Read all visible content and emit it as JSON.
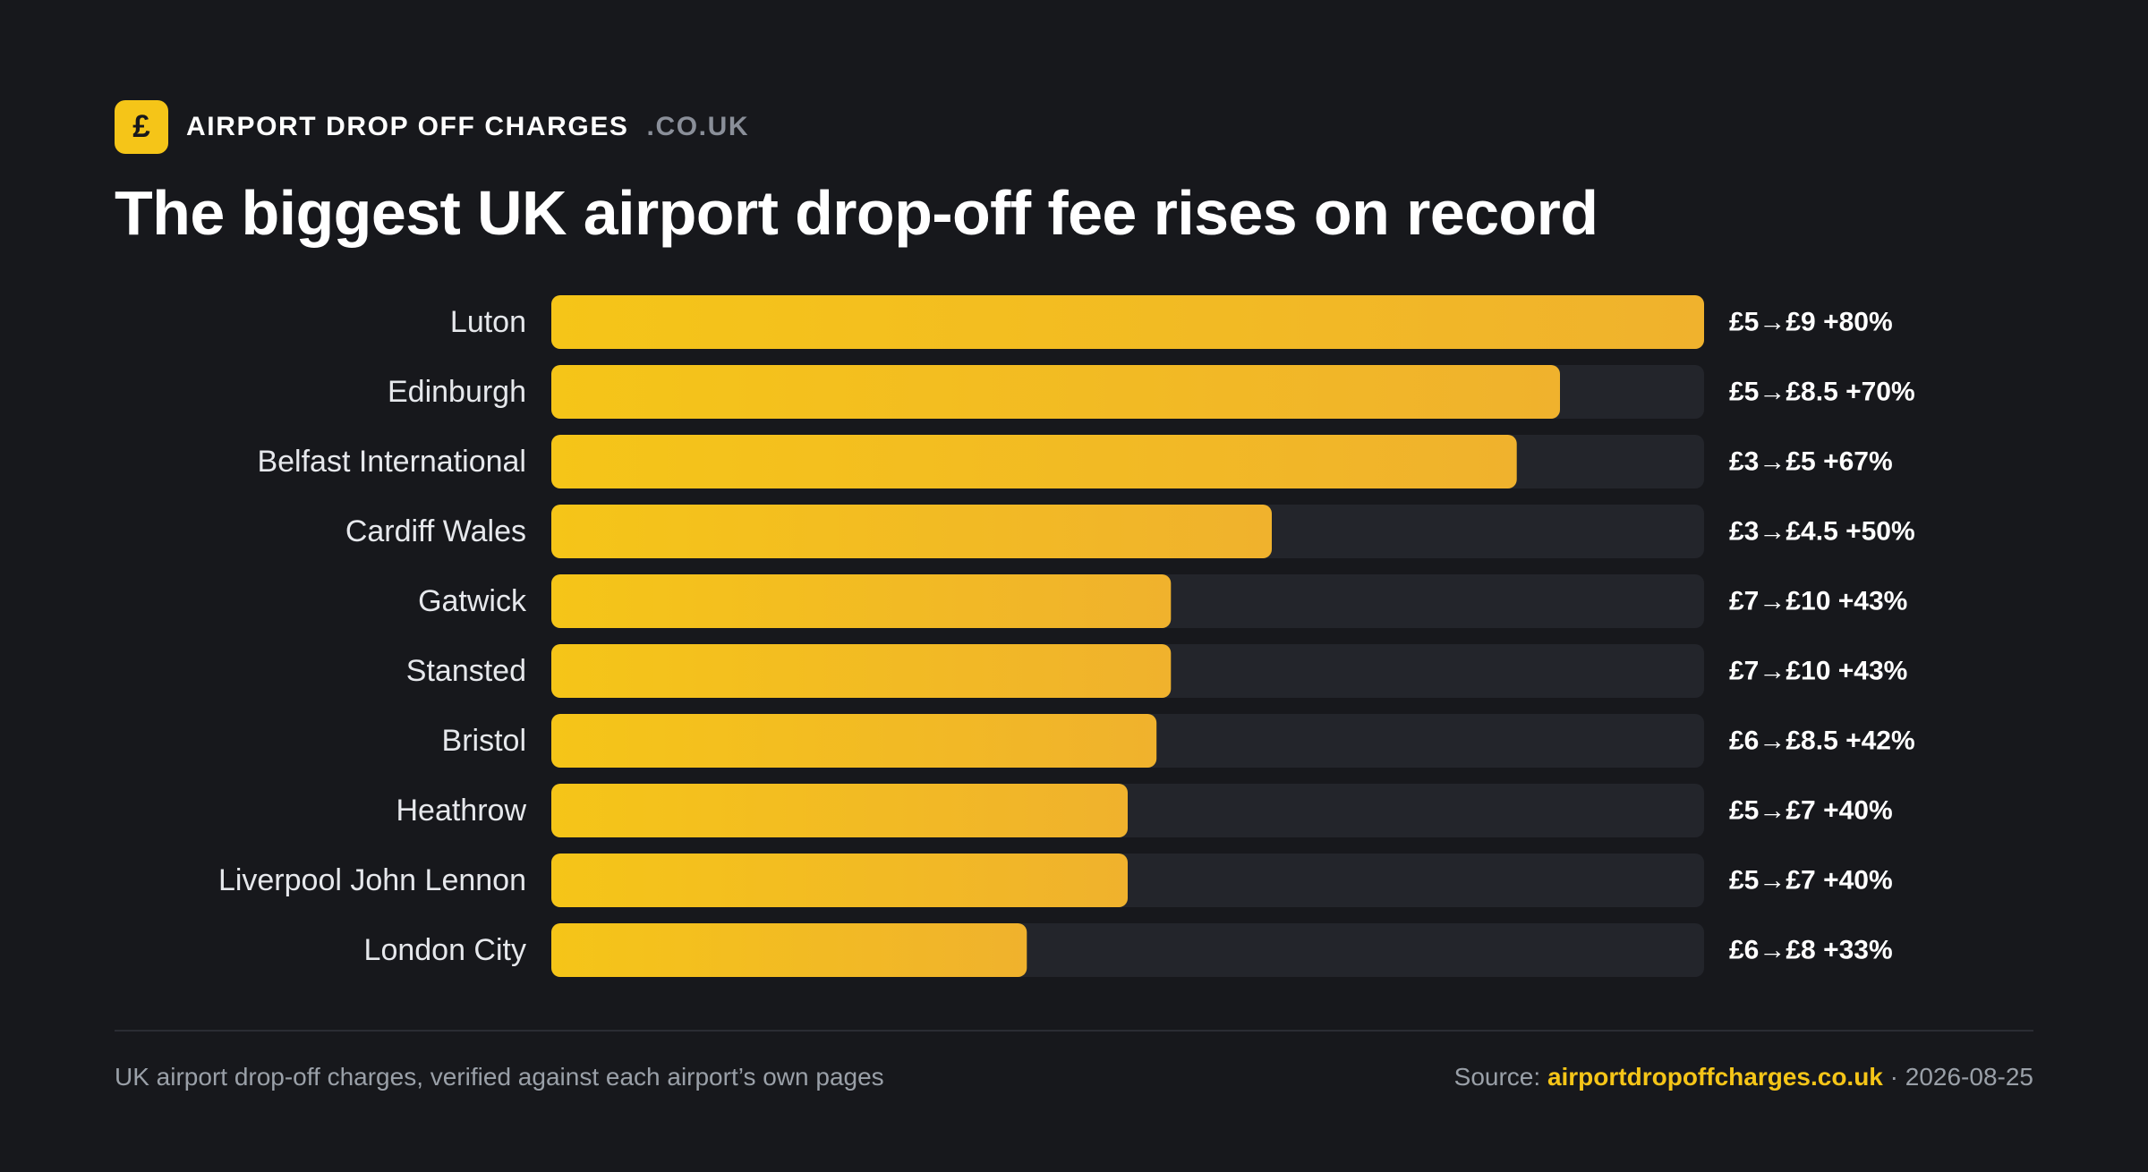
{
  "brand": {
    "icon_glyph": "£",
    "icon_name": "pound-icon",
    "name": "AIRPORT DROP OFF CHARGES",
    "tld": ".CO.UK"
  },
  "colors": {
    "background": "#17181c",
    "bar_start": "#f5c518",
    "bar_end": "#f0b22d",
    "track": "#23252b",
    "label": "#e6e8ec",
    "muted": "#9aa0a8",
    "accent": "#f5c518"
  },
  "chart_data": {
    "type": "bar",
    "orientation": "horizontal",
    "title": "The biggest UK airport drop-off fee rises on record",
    "categories": [
      "Luton",
      "Edinburgh",
      "Belfast International",
      "Cardiff Wales",
      "Gatwick",
      "Stansted",
      "Bristol",
      "Heathrow",
      "Liverpool John Lennon",
      "London City"
    ],
    "values": [
      80,
      70,
      67,
      50,
      43,
      43,
      42,
      40,
      40,
      33
    ],
    "unit": "%",
    "xlim": [
      0,
      80
    ],
    "grid": false,
    "legend": "none",
    "data_labels": [
      "£5→£9 +80%",
      "£5→£8.5 +70%",
      "£3→£5 +67%",
      "£3→£4.5 +50%",
      "£7→£10 +43%",
      "£7→£10 +43%",
      "£6→£8.5 +42%",
      "£5→£7 +40%",
      "£5→£7 +40%",
      "£6→£8 +33%"
    ]
  },
  "footer": {
    "note": "UK airport drop-off charges, verified against each airport’s own pages",
    "source_prefix": "Source: ",
    "source_link": "airportdropoffcharges.co.uk",
    "separator": " · ",
    "date": "2026-08-25"
  }
}
